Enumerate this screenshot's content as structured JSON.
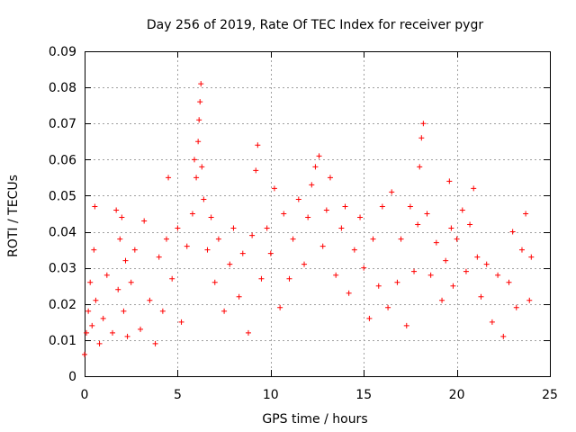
{
  "chart_data": {
    "type": "scatter",
    "title": "Day 256 of 2019, Rate Of TEC Index for receiver pygr",
    "xlabel": "GPS time / hours",
    "ylabel": "ROTI / TECUs",
    "xlim": [
      0,
      25
    ],
    "ylim": [
      0,
      0.09
    ],
    "xticks": [
      "0",
      "5",
      "10",
      "15",
      "20",
      "25"
    ],
    "yticks": [
      "0",
      "0.01",
      "0.02",
      "0.03",
      "0.04",
      "0.05",
      "0.06",
      "0.07",
      "0.08",
      "0.09"
    ],
    "grid": true,
    "marker": "plus",
    "color": "#ff0000",
    "series": [
      {
        "name": "ROTI",
        "x": [
          0.0,
          0.1,
          0.2,
          0.3,
          0.4,
          0.5,
          0.55,
          0.6,
          0.8,
          1.0,
          1.2,
          1.5,
          1.7,
          1.8,
          1.9,
          2.0,
          2.1,
          2.2,
          2.3,
          2.5,
          2.7,
          3.0,
          3.2,
          3.5,
          3.8,
          4.0,
          4.2,
          4.4,
          4.5,
          4.7,
          5.0,
          5.2,
          5.5,
          5.8,
          5.9,
          6.0,
          6.1,
          6.15,
          6.2,
          6.25,
          6.3,
          6.4,
          6.6,
          6.8,
          7.0,
          7.2,
          7.5,
          7.8,
          8.0,
          8.3,
          8.5,
          8.8,
          9.0,
          9.2,
          9.3,
          9.5,
          9.8,
          10.0,
          10.2,
          10.5,
          10.7,
          11.0,
          11.2,
          11.5,
          11.8,
          12.0,
          12.2,
          12.4,
          12.6,
          12.8,
          13.0,
          13.2,
          13.5,
          13.8,
          14.0,
          14.2,
          14.5,
          14.8,
          15.0,
          15.3,
          15.5,
          15.8,
          16.0,
          16.3,
          16.5,
          16.8,
          17.0,
          17.3,
          17.5,
          17.7,
          17.9,
          18.0,
          18.1,
          18.2,
          18.4,
          18.6,
          18.9,
          19.2,
          19.4,
          19.6,
          19.7,
          19.8,
          20.0,
          20.3,
          20.5,
          20.7,
          20.9,
          21.1,
          21.3,
          21.6,
          21.9,
          22.2,
          22.5,
          22.8,
          23.0,
          23.2,
          23.5,
          23.7,
          23.9,
          24.0
        ],
        "y": [
          0.006,
          0.012,
          0.018,
          0.026,
          0.014,
          0.035,
          0.047,
          0.021,
          0.009,
          0.016,
          0.028,
          0.012,
          0.046,
          0.024,
          0.038,
          0.044,
          0.018,
          0.032,
          0.011,
          0.026,
          0.035,
          0.013,
          0.043,
          0.021,
          0.009,
          0.033,
          0.018,
          0.038,
          0.055,
          0.027,
          0.041,
          0.015,
          0.036,
          0.045,
          0.06,
          0.055,
          0.065,
          0.071,
          0.076,
          0.081,
          0.058,
          0.049,
          0.035,
          0.044,
          0.026,
          0.038,
          0.018,
          0.031,
          0.041,
          0.022,
          0.034,
          0.012,
          0.039,
          0.057,
          0.064,
          0.027,
          0.041,
          0.034,
          0.052,
          0.019,
          0.045,
          0.027,
          0.038,
          0.049,
          0.031,
          0.044,
          0.053,
          0.058,
          0.061,
          0.036,
          0.046,
          0.055,
          0.028,
          0.041,
          0.047,
          0.023,
          0.035,
          0.044,
          0.03,
          0.016,
          0.038,
          0.025,
          0.047,
          0.019,
          0.051,
          0.026,
          0.038,
          0.014,
          0.047,
          0.029,
          0.042,
          0.058,
          0.066,
          0.07,
          0.045,
          0.028,
          0.037,
          0.021,
          0.032,
          0.054,
          0.041,
          0.025,
          0.038,
          0.046,
          0.029,
          0.042,
          0.052,
          0.033,
          0.022,
          0.031,
          0.015,
          0.028,
          0.011,
          0.026,
          0.04,
          0.019,
          0.035,
          0.045,
          0.021,
          0.033
        ]
      }
    ]
  }
}
